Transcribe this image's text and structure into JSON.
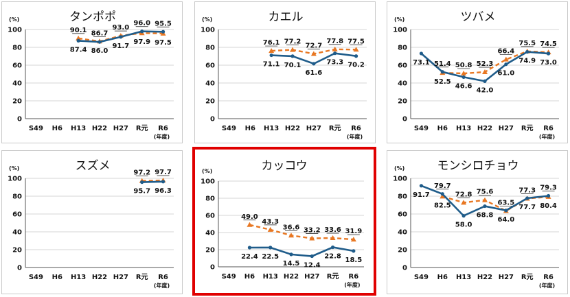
{
  "categories": [
    "S49",
    "H6",
    "H13",
    "H22",
    "H27",
    "R元",
    "R6"
  ],
  "x_unit": "(年度)",
  "y_unit": "(%)",
  "colors": {
    "solid": "#1f5c8a",
    "dashed": "#e87722",
    "highlight": "#e00000"
  },
  "chart_data": [
    {
      "type": "line",
      "title": "タンポポ",
      "ylim": [
        0,
        100
      ],
      "yticks": [
        0,
        20,
        40,
        60,
        80,
        100
      ],
      "series": [
        {
          "style": "solid",
          "values": [
            null,
            null,
            87.4,
            86.0,
            91.7,
            97.9,
            97.5
          ]
        },
        {
          "style": "dashed",
          "values": [
            null,
            null,
            90.1,
            86.7,
            93.0,
            96.0,
            95.5
          ]
        }
      ]
    },
    {
      "type": "line",
      "title": "カエル",
      "ylim": [
        0,
        100
      ],
      "yticks": [
        0,
        20,
        40,
        60,
        80,
        100
      ],
      "series": [
        {
          "style": "solid",
          "values": [
            null,
            null,
            71.1,
            70.1,
            61.6,
            73.3,
            70.2
          ]
        },
        {
          "style": "dashed",
          "values": [
            null,
            null,
            76.1,
            77.2,
            72.7,
            77.8,
            77.5
          ]
        }
      ]
    },
    {
      "type": "line",
      "title": "ツバメ",
      "ylim": [
        0,
        100
      ],
      "yticks": [
        0,
        20,
        40,
        60,
        80,
        100
      ],
      "series": [
        {
          "style": "solid",
          "values": [
            73.1,
            52.5,
            46.6,
            42.0,
            61.0,
            74.9,
            73.0
          ]
        },
        {
          "style": "dashed",
          "values": [
            null,
            51.4,
            50.8,
            52.3,
            66.4,
            75.5,
            74.5
          ]
        }
      ]
    },
    {
      "type": "line",
      "title": "スズメ",
      "ylim": [
        0,
        100
      ],
      "yticks": [
        0,
        20,
        40,
        60,
        80,
        100
      ],
      "series": [
        {
          "style": "solid",
          "values": [
            null,
            null,
            null,
            null,
            null,
            95.7,
            96.3
          ]
        },
        {
          "style": "dashed",
          "values": [
            null,
            null,
            null,
            null,
            null,
            97.2,
            97.7
          ]
        }
      ]
    },
    {
      "type": "line",
      "title": "カッコウ",
      "highlight": true,
      "ylim": [
        0,
        100
      ],
      "yticks": [
        0,
        20,
        40,
        60,
        80,
        100
      ],
      "series": [
        {
          "style": "solid",
          "values": [
            null,
            22.4,
            22.5,
            14.5,
            12.4,
            22.8,
            18.5
          ]
        },
        {
          "style": "dashed",
          "values": [
            null,
            49.0,
            43.3,
            36.6,
            33.2,
            33.6,
            31.9
          ]
        }
      ]
    },
    {
      "type": "line",
      "title": "モンシロチョウ",
      "ylim": [
        0,
        100
      ],
      "yticks": [
        0,
        20,
        40,
        60,
        80,
        100
      ],
      "series": [
        {
          "style": "solid",
          "values": [
            91.7,
            82.5,
            58.0,
            68.8,
            64.0,
            77.7,
            80.4
          ]
        },
        {
          "style": "dashed",
          "values": [
            null,
            79.7,
            72.8,
            75.6,
            63.5,
            77.3,
            79.3
          ]
        }
      ]
    }
  ]
}
